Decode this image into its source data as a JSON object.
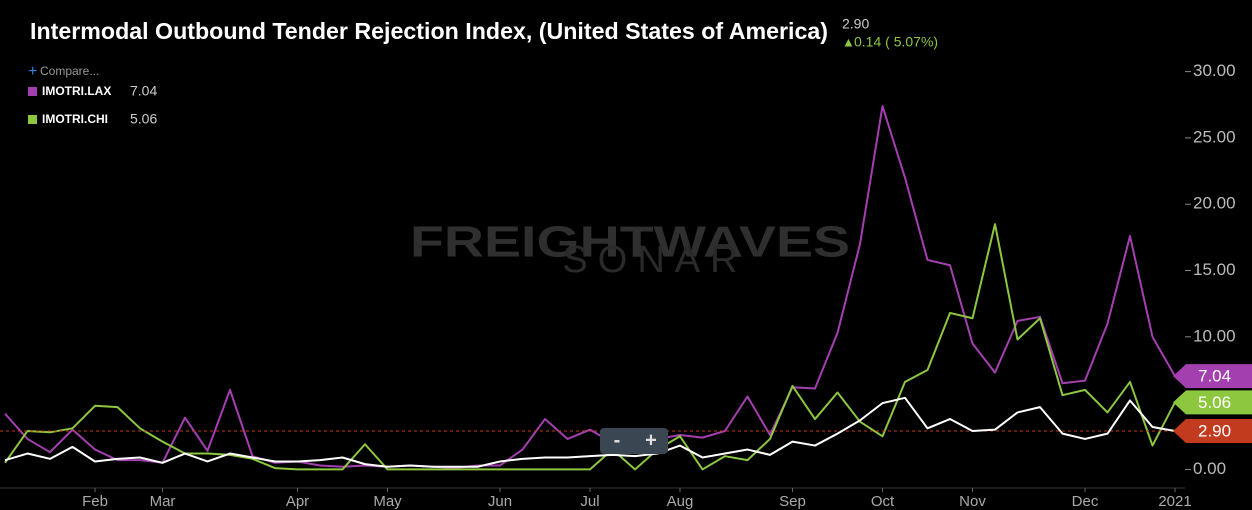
{
  "chart_data": {
    "type": "line",
    "title": "Intermodal Outbound Tender Rejection Index, (United States of America)",
    "header_value_label": "2.90",
    "change_label": "0.14 ( 5.07%)",
    "compare_label": "Compare...",
    "watermark": [
      "FREIGHTWAVES",
      "SONAR"
    ],
    "zoom_buttons": [
      "-",
      "+"
    ],
    "categories": [
      null,
      null,
      null,
      null,
      "Feb",
      null,
      null,
      "Mar",
      null,
      null,
      null,
      null,
      null,
      "Apr",
      null,
      null,
      null,
      "May",
      null,
      null,
      null,
      null,
      "Jun",
      null,
      null,
      null,
      "Jul",
      null,
      null,
      null,
      "Aug",
      null,
      null,
      null,
      null,
      "Sep",
      null,
      null,
      null,
      "Oct",
      null,
      null,
      null,
      "Nov",
      null,
      null,
      null,
      null,
      "Dec",
      null,
      null,
      null,
      "2021"
    ],
    "series": [
      {
        "name": "IMOTRI.LAX",
        "color": "#a43fb0",
        "values": [
          4.2,
          2.3,
          1.3,
          3.0,
          1.5,
          0.7,
          0.7,
          0.5,
          3.9,
          1.4,
          6.0,
          1.0,
          0.5,
          0.6,
          0.3,
          0.2,
          0.3,
          0.2,
          0.3,
          0.2,
          0.1,
          0.3,
          0.3,
          1.5,
          3.8,
          2.3,
          3.0,
          2.0,
          2.5,
          2.3,
          2.6,
          2.4,
          2.9,
          5.5,
          2.6,
          6.2,
          6.1,
          10.3,
          17,
          27.4,
          22,
          15.8,
          15.4,
          9.5,
          7.3,
          11.2,
          11.5,
          6.5,
          6.7,
          11,
          17.6,
          10,
          7.04
        ]
      },
      {
        "name": "IMOTRI.CHI",
        "color": "#8dc63f",
        "values": [
          0.5,
          2.9,
          2.8,
          3.1,
          4.8,
          4.7,
          3.1,
          2.1,
          1.2,
          1.2,
          1.1,
          0.8,
          0.1,
          0.0,
          0.0,
          0.0,
          1.9,
          0.0,
          0.0,
          0.0,
          0.0,
          0.0,
          0.0,
          0.0,
          0.0,
          0.0,
          0.0,
          1.5,
          0.0,
          1.5,
          2.5,
          0.0,
          1.0,
          0.7,
          2.3,
          6.3,
          3.8,
          5.8,
          3.6,
          2.5,
          6.6,
          7.5,
          11.8,
          11.4,
          18.5,
          9.8,
          11.4,
          5.6,
          6.0,
          4.3,
          6.6,
          1.8,
          5.06
        ]
      },
      {
        "color": "#ffffff",
        "tag_color": "#c23b1e",
        "tag_label": "2.90",
        "values": [
          0.7,
          1.2,
          0.8,
          1.7,
          0.6,
          0.8,
          0.9,
          0.5,
          1.2,
          0.6,
          1.2,
          0.9,
          0.6,
          0.6,
          0.7,
          0.9,
          0.4,
          0.2,
          0.3,
          0.2,
          0.2,
          0.2,
          0.6,
          0.8,
          0.9,
          0.9,
          1.0,
          1.1,
          1.0,
          1.2,
          1.8,
          0.9,
          1.2,
          1.5,
          1.1,
          2.1,
          1.8,
          2.7,
          3.7,
          5.0,
          5.4,
          3.1,
          3.8,
          2.9,
          3.0,
          4.3,
          4.7,
          2.7,
          2.3,
          2.7,
          5.2,
          3.2,
          2.9
        ]
      }
    ],
    "ylim": [
      -1.4,
      35.4
    ],
    "yticks": [
      {
        "value": 0,
        "label": "0.00"
      },
      {
        "value": 5,
        "label": "5.00"
      },
      {
        "value": 10,
        "label": "10.00"
      },
      {
        "value": 15,
        "label": "15.00"
      },
      {
        "value": 20,
        "label": "20.00"
      },
      {
        "value": 25,
        "label": "25.00"
      },
      {
        "value": 30,
        "label": "30.00"
      }
    ]
  }
}
